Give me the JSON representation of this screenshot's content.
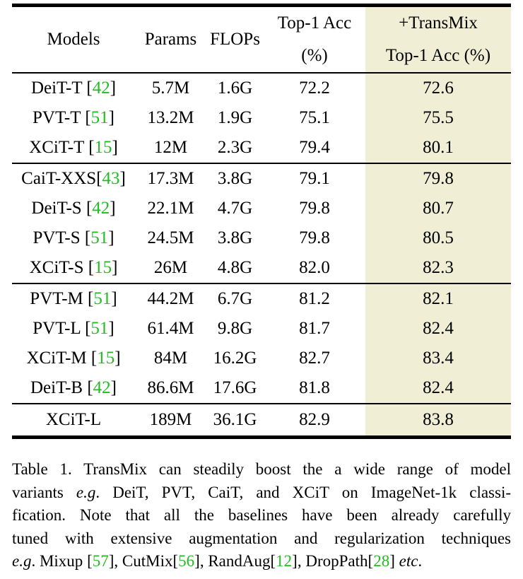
{
  "table": {
    "headers": {
      "models": "Models",
      "params": "Params",
      "flops": "FLOPs",
      "top1_line1": "Top-1 Acc",
      "top1_line2": "(%)",
      "transmix_line1": "+TransMix",
      "transmix_line2": "Top-1 Acc (%)"
    },
    "rows": [
      {
        "model": "DeiT-T ",
        "cite_open": "[",
        "cite": "42",
        "cite_close": "]",
        "params": "5.7M",
        "flops": "1.6G",
        "top1": "72.2",
        "transmix": "72.6"
      },
      {
        "model": "PVT-T ",
        "cite_open": "[",
        "cite": "51",
        "cite_close": "]",
        "params": "13.2M",
        "flops": "1.9G",
        "top1": "75.1",
        "transmix": "75.5"
      },
      {
        "model": "XCiT-T ",
        "cite_open": "[",
        "cite": "15",
        "cite_close": "]",
        "params": "12M",
        "flops": "2.3G",
        "top1": "79.4",
        "transmix": "80.1"
      },
      {
        "model": "CaiT-XXS",
        "cite_open": "[",
        "cite": "43",
        "cite_close": "]",
        "params": "17.3M",
        "flops": "3.8G",
        "top1": "79.1",
        "transmix": "79.8"
      },
      {
        "model": "DeiT-S ",
        "cite_open": "[",
        "cite": "42",
        "cite_close": "]",
        "params": "22.1M",
        "flops": "4.7G",
        "top1": "79.8",
        "transmix": "80.7"
      },
      {
        "model": "PVT-S ",
        "cite_open": "[",
        "cite": "51",
        "cite_close": "]",
        "params": "24.5M",
        "flops": "3.8G",
        "top1": "79.8",
        "transmix": "80.5"
      },
      {
        "model": "XCiT-S ",
        "cite_open": "[",
        "cite": "15",
        "cite_close": "]",
        "params": "26M",
        "flops": "4.8G",
        "top1": "82.0",
        "transmix": "82.3"
      },
      {
        "model": "PVT-M ",
        "cite_open": "[",
        "cite": "51",
        "cite_close": "]",
        "params": "44.2M",
        "flops": "6.7G",
        "top1": "81.2",
        "transmix": "82.1"
      },
      {
        "model": "PVT-L ",
        "cite_open": "[",
        "cite": "51",
        "cite_close": "]",
        "params": "61.4M",
        "flops": "9.8G",
        "top1": "81.7",
        "transmix": "82.4"
      },
      {
        "model": "XCiT-M ",
        "cite_open": "[",
        "cite": "15",
        "cite_close": "]",
        "params": "84M",
        "flops": "16.2G",
        "top1": "82.7",
        "transmix": "83.4"
      },
      {
        "model": "DeiT-B ",
        "cite_open": "[",
        "cite": "42",
        "cite_close": "]",
        "params": "86.6M",
        "flops": "17.6G",
        "top1": "81.8",
        "transmix": "82.4"
      },
      {
        "model": "XCiT-L",
        "params": "189M",
        "flops": "36.1G",
        "top1": "82.9",
        "transmix": "83.8"
      }
    ]
  },
  "caption": {
    "l1": "Table 1. TransMix can steadily boost the a wide range of model",
    "l2_a": "variants ",
    "l2_eg": "e.g",
    "l2_b": ". DeiT, PVT, CaiT, and XCiT on ImageNet-1k classi-",
    "l3": "fication.  Note that all the baselines have been already carefully",
    "l4": "tuned with extensive augmentation and regularization techniques",
    "l5_eg": "e.g",
    "l5_a": ". Mixup ",
    "l5_c1": "57",
    "l5_b": ", CutMix",
    "l5_c2": "56",
    "l5_c": ", RandAug",
    "l5_c3": "12",
    "l5_d": ", DropPath",
    "l5_c4": "28",
    "l5_e": " ",
    "l5_etc": "etc",
    "l5_f": "."
  },
  "colors": {
    "highlight": "#f0efd6",
    "citation": "#22bb22"
  }
}
